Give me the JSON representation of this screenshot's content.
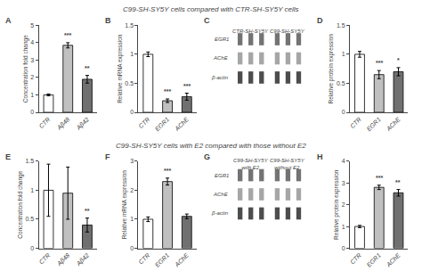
{
  "chart_data": [
    {
      "type": "bar",
      "title": "A",
      "subtitle": "C99-SH-SY5Y cells compared with CTR-SH-SY5Y cells",
      "categories": [
        "CTR",
        "Aβ48",
        "Aβ42"
      ],
      "values": [
        1.0,
        3.85,
        1.9
      ],
      "errors": [
        0.05,
        0.15,
        0.22
      ],
      "colors": [
        "white",
        "#c0c0c0",
        "#707070"
      ],
      "ylabel": "Concentration fold change",
      "ylim": [
        0,
        5
      ],
      "yticks": [
        0,
        1,
        2,
        3,
        4,
        5
      ],
      "annotations": [
        {
          "x": "Aβ48",
          "text": "***"
        },
        {
          "x": "Aβ42",
          "text": "**"
        }
      ]
    },
    {
      "type": "bar",
      "title": "B",
      "categories": [
        "CTR",
        "EGR1",
        "AChE"
      ],
      "values": [
        1.0,
        0.2,
        0.27
      ],
      "errors": [
        0.04,
        0.03,
        0.06
      ],
      "colors": [
        "white",
        "#c0c0c0",
        "#707070"
      ],
      "ylabel": "Relative mRNA expression",
      "ylim": [
        0,
        1.5
      ],
      "yticks": [
        0,
        0.5,
        1,
        1.5
      ],
      "annotations": [
        {
          "x": "EGR1",
          "text": "***"
        },
        {
          "x": "AChE",
          "text": "***"
        }
      ]
    },
    {
      "type": "blot",
      "title": "C",
      "categories": [
        "EGR1",
        "AChE",
        "β-actin"
      ],
      "annotations": [
        [
          "CTR-SH-SY5Y"
        ],
        [
          "C99-SH-SY5Y"
        ]
      ]
    },
    {
      "type": "bar",
      "title": "D",
      "categories": [
        "CTR",
        "EGR1",
        "AChE"
      ],
      "values": [
        1.0,
        0.65,
        0.7
      ],
      "errors": [
        0.05,
        0.07,
        0.07
      ],
      "colors": [
        "white",
        "#c0c0c0",
        "#707070"
      ],
      "ylabel": "Relative protein expression",
      "ylim": [
        0,
        1.5
      ],
      "yticks": [
        0,
        0.5,
        1,
        1.5
      ],
      "annotations": [
        {
          "x": "EGR1",
          "text": "***"
        },
        {
          "x": "AChE",
          "text": "*"
        }
      ]
    },
    {
      "type": "bar",
      "title": "E",
      "subtitle": "C99-SH-SY5Y cells with E2 compared with those without E2",
      "categories": [
        "CTR",
        "Aβ48",
        "Aβ42"
      ],
      "values": [
        1.0,
        0.95,
        0.4
      ],
      "errors": [
        0.45,
        0.45,
        0.12
      ],
      "colors": [
        "white",
        "#c0c0c0",
        "#707070"
      ],
      "ylabel": "Concentration fold change",
      "ylim": [
        0,
        1.5
      ],
      "yticks": [
        0,
        0.5,
        1,
        1.5
      ],
      "annotations": [
        {
          "x": "Aβ42",
          "text": "**"
        }
      ]
    },
    {
      "type": "bar",
      "title": "F",
      "categories": [
        "CTR",
        "EGR1",
        "AChE"
      ],
      "values": [
        1.0,
        2.3,
        1.1
      ],
      "errors": [
        0.08,
        0.12,
        0.08
      ],
      "colors": [
        "white",
        "#c0c0c0",
        "#707070"
      ],
      "ylabel": "Relative mRNA expression",
      "ylim": [
        0,
        3
      ],
      "yticks": [
        0,
        1,
        2,
        3
      ],
      "annotations": [
        {
          "x": "EGR1",
          "text": "***"
        }
      ]
    },
    {
      "type": "blot",
      "title": "G",
      "categories": [
        "EGR1",
        "AChE",
        "β-actin"
      ],
      "annotations": [
        [
          "C99-SH-SY5Y",
          "with E2"
        ],
        [
          "C99-SH-SY5Y",
          "without E2"
        ]
      ]
    },
    {
      "type": "bar",
      "title": "H",
      "categories": [
        "CTR",
        "EGR1",
        "AChE"
      ],
      "values": [
        1.0,
        2.8,
        2.55
      ],
      "errors": [
        0.05,
        0.1,
        0.15
      ],
      "colors": [
        "white",
        "#c0c0c0",
        "#707070"
      ],
      "ylabel": "Relative protein expression",
      "ylim": [
        0,
        4
      ],
      "yticks": [
        0,
        1,
        2,
        3,
        4
      ],
      "annotations": [
        {
          "x": "EGR1",
          "text": "***"
        },
        {
          "x": "AChE",
          "text": "**"
        }
      ]
    }
  ]
}
